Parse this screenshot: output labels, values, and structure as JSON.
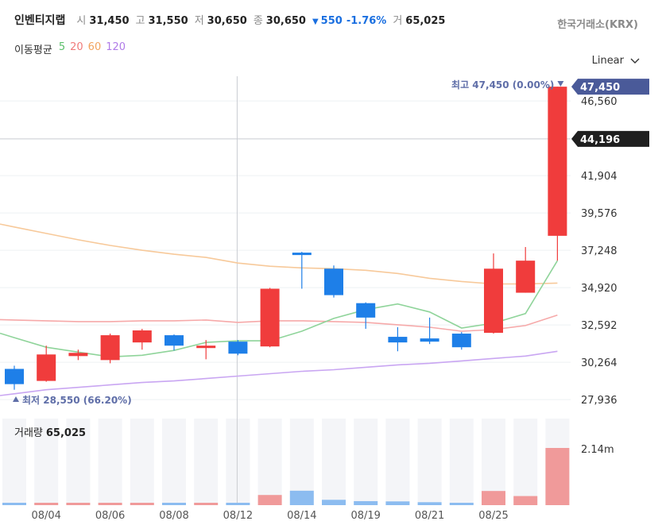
{
  "header": {
    "stock_name": "인벤티지랩",
    "open_label": "시",
    "open": "31,450",
    "high_label": "고",
    "high": "31,550",
    "low_label": "저",
    "low": "30,650",
    "close_label": "종",
    "close": "30,650",
    "change_arrow": "▼",
    "change": "550",
    "change_pct": "-1.76%",
    "volume_label": "거",
    "volume": "65,025",
    "exchange": "한국거래소(KRX)"
  },
  "moving_average": {
    "label": "이동평균",
    "periods": [
      {
        "period": "5",
        "color": "#5cc06b"
      },
      {
        "period": "20",
        "color": "#f07b7b"
      },
      {
        "period": "60",
        "color": "#f2a35e"
      },
      {
        "period": "120",
        "color": "#b07be8"
      }
    ]
  },
  "scale_selector": {
    "label": "Linear",
    "icon": "chevron-down-icon"
  },
  "colors": {
    "up": "#f03c3c",
    "down": "#1e7fe8",
    "volume_up": "#f09a9a",
    "volume_down": "#8cbcf0"
  },
  "chart_data": {
    "type": "candlestick",
    "y_ticks": [
      "46,560",
      "41,904",
      "39,576",
      "37,248",
      "34,920",
      "32,592",
      "30,264",
      "27,936"
    ],
    "ylim": [
      27000,
      48100
    ],
    "highest_label": "최고 47,450 (0.00%)",
    "lowest_label": "최저 28,550 (66.20%)",
    "price_tag": "47,450",
    "crosshair_price": "44,196",
    "x_labels": [
      "08/04",
      "08/06",
      "08/08",
      "08/12",
      "08/14",
      "08/19",
      "08/21",
      "08/25"
    ],
    "candles": [
      {
        "o": 29850,
        "h": 30050,
        "l": 28550,
        "c": 28900
      },
      {
        "o": 29100,
        "h": 31300,
        "l": 29050,
        "c": 30750
      },
      {
        "o": 30650,
        "h": 31050,
        "l": 30400,
        "c": 30850
      },
      {
        "o": 30400,
        "h": 32050,
        "l": 30200,
        "c": 31950
      },
      {
        "o": 31500,
        "h": 32350,
        "l": 31050,
        "c": 32250
      },
      {
        "o": 31950,
        "h": 32000,
        "l": 31000,
        "c": 31300
      },
      {
        "o": 31150,
        "h": 31650,
        "l": 30450,
        "c": 31300
      },
      {
        "o": 31550,
        "h": 31650,
        "l": 30700,
        "c": 30800
      },
      {
        "o": 31250,
        "h": 34900,
        "l": 31200,
        "c": 34850
      },
      {
        "o": 37100,
        "h": 37150,
        "l": 34850,
        "c": 36950
      },
      {
        "o": 36100,
        "h": 36300,
        "l": 34300,
        "c": 34450
      },
      {
        "o": 33950,
        "h": 34000,
        "l": 32350,
        "c": 33050
      },
      {
        "o": 31850,
        "h": 32450,
        "l": 30950,
        "c": 31500
      },
      {
        "o": 31750,
        "h": 33050,
        "l": 31400,
        "c": 31550
      },
      {
        "o": 32050,
        "h": 32150,
        "l": 31050,
        "c": 31200
      },
      {
        "o": 32100,
        "h": 37050,
        "l": 32050,
        "c": 36100
      },
      {
        "o": 34600,
        "h": 37450,
        "l": 34600,
        "c": 36600
      },
      {
        "o": 38150,
        "h": 47450,
        "l": 36600,
        "c": 47450
      }
    ],
    "ma5": [
      31800,
      31200,
      30900,
      30600,
      30700,
      31000,
      31500,
      31600,
      31600,
      32200,
      33000,
      33550,
      33900,
      33400,
      32400,
      32700,
      33300,
      36600
    ],
    "ma20": [
      32900,
      32850,
      32800,
      32800,
      32850,
      32850,
      32900,
      32750,
      32850,
      32850,
      32800,
      32750,
      32600,
      32450,
      32200,
      32300,
      32550,
      33200
    ],
    "ma60": [
      38700,
      38300,
      37900,
      37550,
      37250,
      37000,
      36800,
      36450,
      36250,
      36150,
      36100,
      36000,
      35800,
      35500,
      35300,
      35150,
      35150,
      35200
    ],
    "ma120": [
      28300,
      28550,
      28700,
      28850,
      29000,
      29100,
      29250,
      29400,
      29550,
      29700,
      29800,
      29950,
      30100,
      30200,
      30350,
      30500,
      30650,
      30950
    ],
    "volume_title": "거래량",
    "volume_value": "65,025",
    "volume_tick": "2.14m",
    "volume_max": 2140000,
    "volumes": [
      55000,
      45000,
      42000,
      38000,
      40000,
      28000,
      25000,
      32000,
      380000,
      540000,
      200000,
      150000,
      140000,
      110000,
      70000,
      530000,
      340000,
      2140000
    ]
  }
}
